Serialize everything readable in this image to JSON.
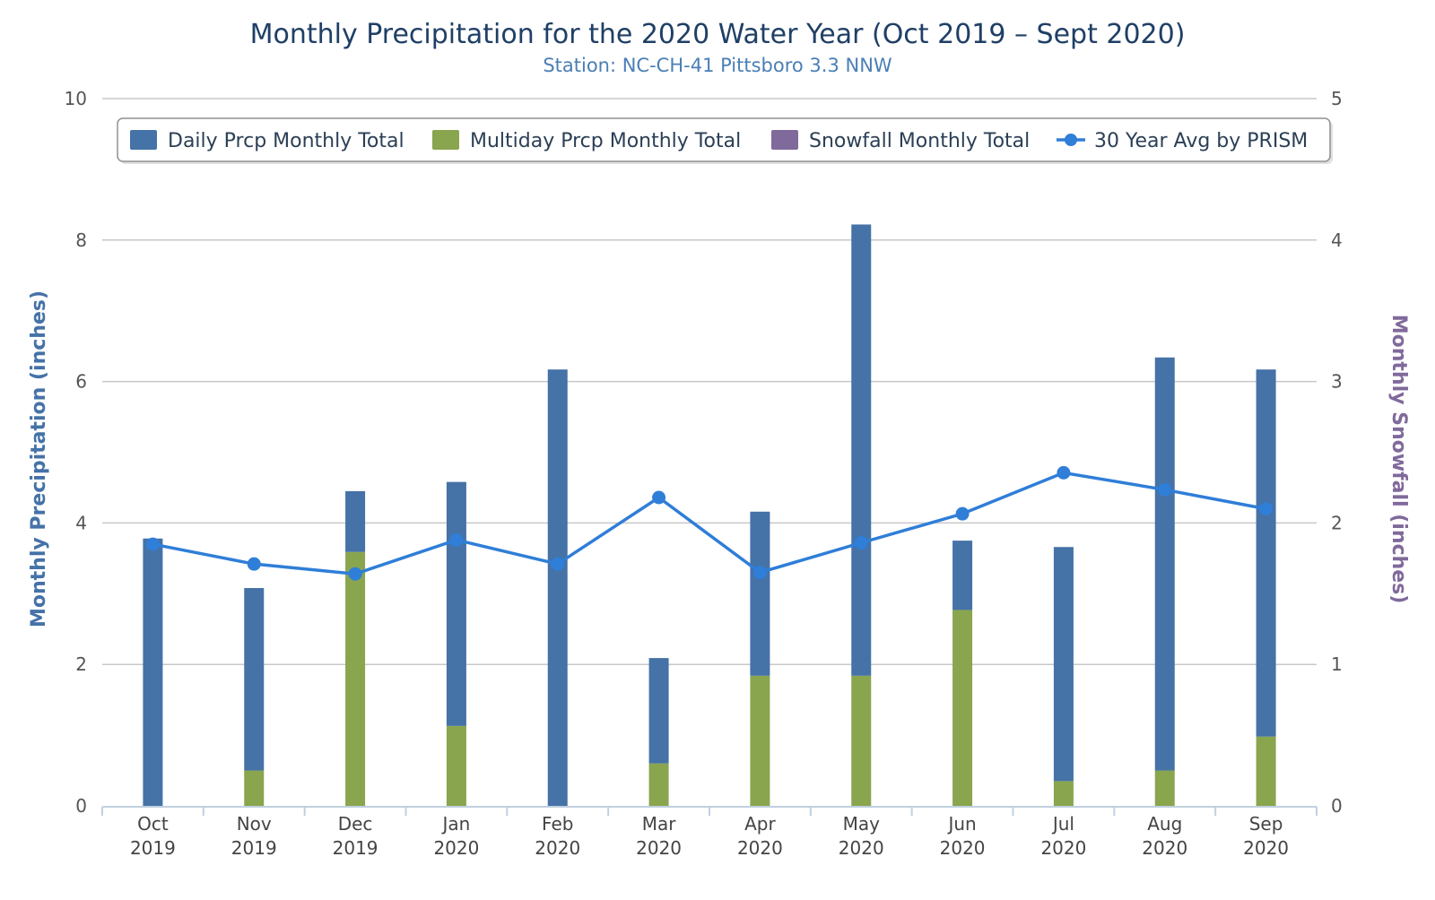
{
  "chart_data": {
    "type": "bar",
    "stacked": true,
    "title": "Monthly Precipitation for the 2020 Water Year (Oct 2019 – Sept 2020)",
    "subtitle": "Station: NC-CH-41 Pittsboro 3.3 NNW",
    "ylabel": "Monthly Precipitation (inches)",
    "y2label": "Monthly Snowfall (inches)",
    "ylim": [
      0,
      10
    ],
    "y2lim": [
      0,
      5
    ],
    "yticks": [
      0,
      2,
      4,
      6,
      8,
      10
    ],
    "y2ticks": [
      0,
      1,
      2,
      3,
      4,
      5
    ],
    "grid": true,
    "legend_position": "top",
    "categories": [
      [
        "Oct",
        "2019"
      ],
      [
        "Nov",
        "2019"
      ],
      [
        "Dec",
        "2019"
      ],
      [
        "Jan",
        "2020"
      ],
      [
        "Feb",
        "2020"
      ],
      [
        "Mar",
        "2020"
      ],
      [
        "Apr",
        "2020"
      ],
      [
        "May",
        "2020"
      ],
      [
        "Jun",
        "2020"
      ],
      [
        "Jul",
        "2020"
      ],
      [
        "Aug",
        "2020"
      ],
      [
        "Sep",
        "2020"
      ]
    ],
    "series": [
      {
        "name": "Daily Prcp Monthly Total",
        "type": "bar",
        "color": "#4572a7",
        "values": [
          3.78,
          2.58,
          0.86,
          3.45,
          6.17,
          1.49,
          2.32,
          6.38,
          0.98,
          3.31,
          5.84,
          5.19
        ]
      },
      {
        "name": "Multiday Prcp Monthly Total",
        "type": "bar",
        "color": "#89a54e",
        "values": [
          0,
          0.5,
          3.59,
          1.13,
          0,
          0.6,
          1.84,
          1.84,
          2.77,
          0.35,
          0.5,
          0.98
        ]
      },
      {
        "name": "Snowfall Monthly Total",
        "type": "bar",
        "axis": "right",
        "color": "#80699b",
        "values": [
          0,
          0,
          0,
          0,
          0,
          0,
          0,
          0,
          0,
          0,
          0,
          0
        ]
      },
      {
        "name": "30 Year Avg by PRISM",
        "type": "line",
        "color": "#2f7ed8",
        "values": [
          3.7,
          3.42,
          3.28,
          3.76,
          3.42,
          4.36,
          3.3,
          3.72,
          4.13,
          4.71,
          4.47,
          4.2
        ]
      }
    ]
  }
}
